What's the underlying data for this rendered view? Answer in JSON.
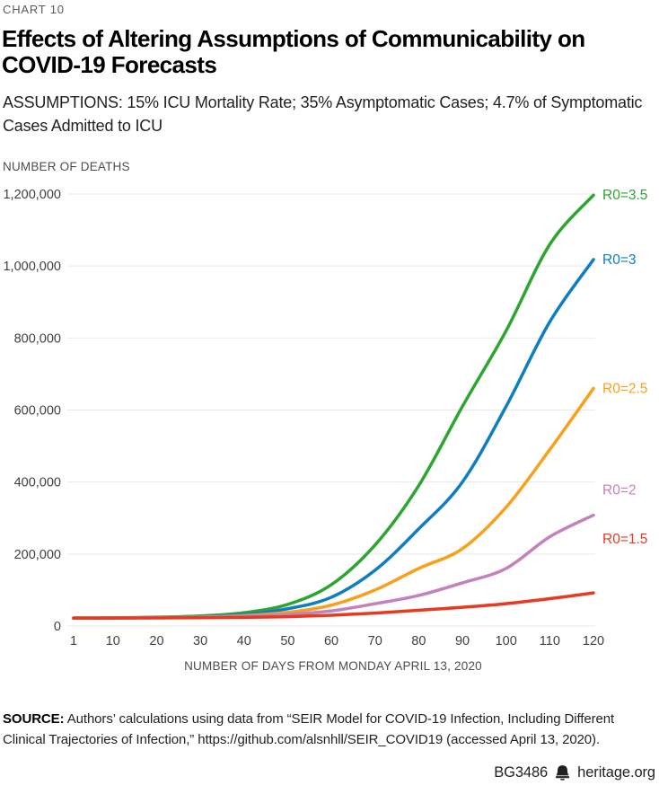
{
  "eyebrow": "CHART 10",
  "title": "Effects of Altering Assumptions of Communicability on COVID-19 Forecasts",
  "subtitle": "ASSUMPTIONS: 15% ICU Mortality Rate; 35% Asymptomatic Cases; 4.7% of Symptomatic Cases Admitted to ICU",
  "source_label": "SOURCE:",
  "source_text": " Authors’ calculations using data from “SEIR Model for COVID-19 Infection, Including Different Clinical Trajectories of Infection,” https://github.com/alsnhll/SEIR_COVID19 (accessed April 13, 2020).",
  "footer": {
    "doc_id": "BG3486",
    "site": "heritage.org",
    "logo_icon": "liberty-bell-icon",
    "text_color": "#231f20"
  },
  "chart_data": {
    "type": "line",
    "title": "Effects of Altering Assumptions of Communicability on COVID-19 Forecasts",
    "ylabel": "NUMBER OF DEATHS",
    "xlabel": "NUMBER OF DAYS FROM MONDAY APRIL 13, 2020",
    "xlim": [
      1,
      120
    ],
    "ylim": [
      0,
      1200000
    ],
    "grid": "horizontal",
    "grid_color": "#e9e9e9",
    "tick_color": "#414042",
    "legend_position": "right-of-line-ends",
    "x": [
      1,
      10,
      20,
      30,
      40,
      50,
      60,
      70,
      80,
      90,
      100,
      110,
      120
    ],
    "x_ticks": [
      "1",
      "10",
      "20",
      "30",
      "40",
      "50",
      "60",
      "70",
      "80",
      "90",
      "100",
      "110",
      "120"
    ],
    "y_ticks": [
      {
        "value": 0,
        "label": "0"
      },
      {
        "value": 200000,
        "label": "200,000"
      },
      {
        "value": 400000,
        "label": "400,000"
      },
      {
        "value": 600000,
        "label": "600,000"
      },
      {
        "value": 800000,
        "label": "800,000"
      },
      {
        "value": 1000000,
        "label": "1,000,000"
      },
      {
        "value": 1200000,
        "label": "1,200,000"
      }
    ],
    "series": [
      {
        "name": "R0=3.5",
        "color": "#2ca62f",
        "label_dy": 0,
        "values": [
          22000,
          23000,
          24500,
          28000,
          37000,
          60000,
          115000,
          225000,
          390000,
          610000,
          820000,
          1060000,
          1197000
        ]
      },
      {
        "name": "R0=3",
        "color": "#0f7dc2",
        "label_dy": 0,
        "values": [
          22000,
          22500,
          24000,
          26000,
          32000,
          48000,
          80000,
          155000,
          270000,
          400000,
          610000,
          845000,
          1018000
        ]
      },
      {
        "name": "R0=2.5",
        "color": "#f9a01b",
        "label_dy": 0,
        "values": [
          22000,
          22500,
          23500,
          25000,
          29000,
          38000,
          58000,
          100000,
          160000,
          215000,
          330000,
          490000,
          660000
        ]
      },
      {
        "name": "R0=2",
        "color": "#c381bd",
        "label_dy": -28,
        "values": [
          22000,
          22000,
          23000,
          24000,
          27000,
          32000,
          42000,
          62000,
          85000,
          120000,
          160000,
          248000,
          308000
        ]
      },
      {
        "name": "R0=1.5",
        "color": "#e83a21",
        "label_dy": -60,
        "values": [
          22000,
          22000,
          22500,
          23000,
          24000,
          26000,
          30000,
          36000,
          44000,
          52000,
          62000,
          76000,
          92000
        ]
      }
    ]
  }
}
